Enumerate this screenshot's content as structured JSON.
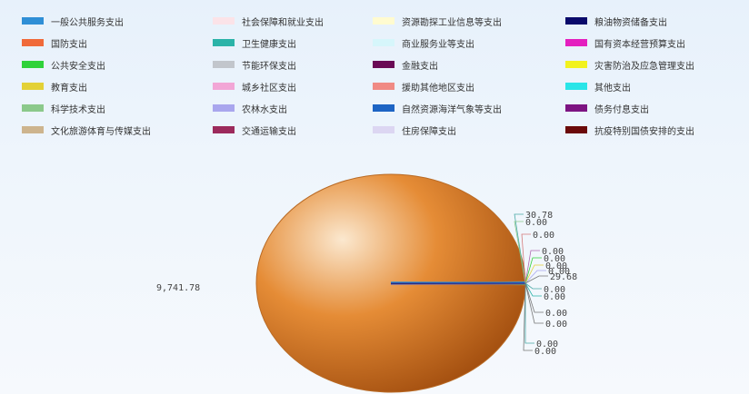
{
  "chart_data": {
    "type": "pie",
    "legend_position": "top",
    "categories": [
      {
        "name": "一般公共服务支出",
        "color": "#2f8fd6",
        "value": 30.78
      },
      {
        "name": "社会保障和就业支出",
        "color": "#fbe3e8",
        "value": 0.0
      },
      {
        "name": "资源勘探工业信息等支出",
        "color": "#fffbd0",
        "value": 0.0
      },
      {
        "name": "粮油物资储备支出",
        "color": "#0a0a6b",
        "value": 0.0
      },
      {
        "name": "国防支出",
        "color": "#f06a3a",
        "value": 0.0
      },
      {
        "name": "卫生健康支出",
        "color": "#2bb3a8",
        "value": 0.0
      },
      {
        "name": "商业服务业等支出",
        "color": "#d6f6fb",
        "value": 0.0
      },
      {
        "name": "国有资本经营预算支出",
        "color": "#e41fbf",
        "value": 0.0
      },
      {
        "name": "公共安全支出",
        "color": "#2fd23a",
        "value": 29.68
      },
      {
        "name": "节能环保支出",
        "color": "#c2c6cc",
        "value": 0.0
      },
      {
        "name": "金融支出",
        "color": "#6a0a55",
        "value": 0.0
      },
      {
        "name": "灾害防治及应急管理支出",
        "color": "#f2f21e",
        "value": 0.0
      },
      {
        "name": "教育支出",
        "color": "#e3d136",
        "value": 0.0
      },
      {
        "name": "城乡社区支出",
        "color": "#f2a6d6",
        "value": 0.0
      },
      {
        "name": "援助其他地区支出",
        "color": "#f08a84",
        "value": 0.0
      },
      {
        "name": "其他支出",
        "color": "#2ae5e8",
        "value": 0.0
      },
      {
        "name": "科学技术支出",
        "color": "#8bc98b",
        "value": 0.0
      },
      {
        "name": "农林水支出",
        "color": "#a9a6ee",
        "value": 0.0
      },
      {
        "name": "自然资源海洋气象等支出",
        "color": "#1d64c4",
        "value": 0.0
      },
      {
        "name": "债务付息支出",
        "color": "#7d1482",
        "value": 0.0
      },
      {
        "name": "文化旅游体育与传媒支出",
        "color": "#cdb48e",
        "value": 9741.78
      },
      {
        "name": "交通运输支出",
        "color": "#9c2a5c",
        "value": 0.0
      },
      {
        "name": "住房保障支出",
        "color": "#dcd6f2",
        "value": 0.0
      },
      {
        "name": "抗疫特别国债安排的支出",
        "color": "#6b0a0a",
        "value": 0.0
      }
    ],
    "main_label": "9,741.78",
    "side_labels": [
      "30.78",
      "0.00",
      "0.00",
      "0.00",
      "0.00",
      "0.00",
      "0.00",
      "29.68",
      "0.00",
      "0.00",
      "0.00",
      "0.00",
      "0.00",
      "0.00"
    ],
    "pie_fill_colors": [
      "#fbe8cf",
      "#e58c36",
      "#a24e0f"
    ]
  }
}
